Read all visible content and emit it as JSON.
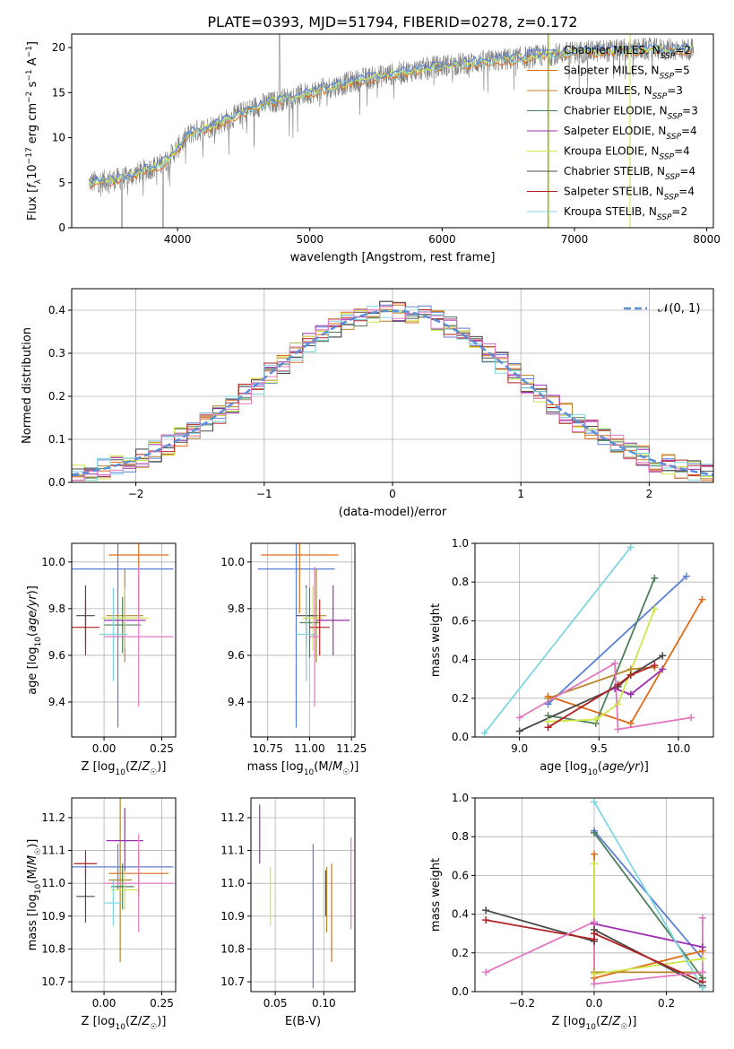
{
  "title": "PLATE=0393, MJD=51794, FIBERID=0278, z=0.172",
  "colors": {
    "Chabrier MILES": "#5b7fd6",
    "Salpeter MILES": "#e06c1a",
    "Kroupa MILES": "#b8862a",
    "Chabrier ELODIE": "#4f7f5a",
    "Salpeter ELODIE": "#9b2fae",
    "Kroupa ELODIE": "#cfe64a",
    "Chabrier STELIB": "#4a4a4a",
    "Salpeter STELIB": "#b22222",
    "Kroupa STELIB": "#7fd6e0",
    "pink": "#e377c2",
    "normal": "#5b8fd6",
    "data": "#808080"
  },
  "chart_data": [
    {
      "id": "spectrum",
      "type": "line",
      "xlabel": "wavelength [Angstrom, rest frame]",
      "ylabel": "Flux [f_λ10^-17 erg cm^-2 s^-1 A^-1]",
      "xlim": [
        3200,
        8050
      ],
      "ylim": [
        0,
        21.5
      ],
      "xticks": [
        4000,
        5000,
        6000,
        7000,
        8000
      ],
      "yticks": [
        0,
        5,
        10,
        15,
        20
      ],
      "legend_position": "top-right",
      "legend": [
        {
          "label": "Chabrier MILES, N_SSP=2",
          "color_key": "Chabrier MILES"
        },
        {
          "label": "Salpeter MILES, N_SSP=5",
          "color_key": "Salpeter MILES"
        },
        {
          "label": "Kroupa MILES, N_SSP=3",
          "color_key": "Kroupa MILES"
        },
        {
          "label": "Chabrier ELODIE, N_SSP=3",
          "color_key": "Chabrier ELODIE"
        },
        {
          "label": "Salpeter ELODIE, N_SSP=4",
          "color_key": "Salpeter ELODIE"
        },
        {
          "label": "Kroupa ELODIE, N_SSP=4",
          "color_key": "Kroupa ELODIE"
        },
        {
          "label": "Chabrier STELIB, N_SSP=4",
          "color_key": "Chabrier STELIB"
        },
        {
          "label": "Salpeter STELIB, N_SSP=4",
          "color_key": "Salpeter STELIB"
        },
        {
          "label": "Kroupa STELIB, N_SSP=2",
          "color_key": "Kroupa STELIB"
        }
      ],
      "continuum": [
        [
          3330,
          5.0
        ],
        [
          3600,
          5.5
        ],
        [
          3900,
          7.2
        ],
        [
          4100,
          10.5
        ],
        [
          4300,
          11.5
        ],
        [
          4600,
          13.5
        ],
        [
          5000,
          15.0
        ],
        [
          5400,
          16.5
        ],
        [
          6000,
          18.0
        ],
        [
          6500,
          18.7
        ],
        [
          7000,
          19.5
        ],
        [
          7500,
          19.8
        ],
        [
          7900,
          19.8
        ]
      ]
    },
    {
      "id": "residual-hist",
      "type": "line",
      "xlabel": "(data-model)/error",
      "ylabel": "Normed distribution",
      "xlim": [
        -2.5,
        2.5
      ],
      "ylim": [
        0,
        0.45
      ],
      "xticks": [
        -2,
        -1,
        0,
        1,
        2
      ],
      "yticks": [
        0.0,
        0.1,
        0.2,
        0.3,
        0.4
      ],
      "legend_position": "top-right",
      "legend": [
        {
          "label": "𝒩(0, 1)",
          "color_key": "normal"
        }
      ],
      "bin_width": 0.1,
      "n_bins": 50
    },
    {
      "id": "age-vs-Z",
      "type": "scatter",
      "xlabel": "Z [log10(Z/Z☉)]",
      "ylabel": "age  [log10(age/yr)]",
      "xlim": [
        -0.14,
        0.31
      ],
      "ylim": [
        9.25,
        10.08
      ],
      "xticks": [
        0.0,
        0.25
      ],
      "yticks": [
        9.4,
        9.6,
        9.8,
        10.0
      ],
      "points": [
        {
          "c": "Chabrier MILES",
          "x": 0.06,
          "y": 9.97,
          "xerr": 0.24,
          "yerr": 0.68
        },
        {
          "c": "Salpeter MILES",
          "x": 0.15,
          "y": 10.03,
          "xerr": 0.13,
          "yerr": 0.25
        },
        {
          "c": "Kroupa MILES",
          "x": 0.09,
          "y": 9.77,
          "xerr": 0.08,
          "yerr": 0.2
        },
        {
          "c": "Chabrier ELODIE",
          "x": 0.08,
          "y": 9.73,
          "xerr": 0.08,
          "yerr": 0.12
        },
        {
          "c": "Salpeter ELODIE",
          "x": 0.09,
          "y": 9.75,
          "xerr": 0.09,
          "yerr": 0.11
        },
        {
          "c": "Kroupa ELODIE",
          "x": 0.09,
          "y": 9.76,
          "xerr": 0.1,
          "yerr": 0.13
        },
        {
          "c": "Chabrier STELIB",
          "x": -0.08,
          "y": 9.77,
          "xerr": 0.04,
          "yerr": 0.13
        },
        {
          "c": "Salpeter STELIB",
          "x": -0.08,
          "y": 9.72,
          "xerr": 0.06,
          "yerr": 0.12
        },
        {
          "c": "Kroupa STELIB",
          "x": 0.04,
          "y": 9.69,
          "xerr": 0.06,
          "yerr": 0.2
        },
        {
          "c": "pink",
          "x": 0.15,
          "y": 9.68,
          "xerr": 0.15,
          "yerr": 0.3
        }
      ]
    },
    {
      "id": "age-vs-mass",
      "type": "scatter",
      "xlabel": "mass [log10(M/M☉)]",
      "ylabel": "",
      "xlim": [
        10.65,
        11.27
      ],
      "ylim": [
        9.25,
        10.08
      ],
      "xticks": [
        10.75,
        11.0,
        11.25
      ],
      "yticks": [
        9.4,
        9.6,
        9.8,
        10.0
      ],
      "points": [
        {
          "c": "Chabrier MILES",
          "x": 10.92,
          "y": 9.97,
          "xerr": 0.23,
          "yerr": 0.68
        },
        {
          "c": "Salpeter MILES",
          "x": 10.94,
          "y": 10.03,
          "xerr": 0.23,
          "yerr": 0.25
        },
        {
          "c": "Kroupa MILES",
          "x": 11.04,
          "y": 9.77,
          "xerr": 0.06,
          "yerr": 0.2
        },
        {
          "c": "Chabrier ELODIE",
          "x": 11.0,
          "y": 9.74,
          "xerr": 0.06,
          "yerr": 0.15
        },
        {
          "c": "Salpeter ELODIE",
          "x": 11.14,
          "y": 9.75,
          "xerr": 0.1,
          "yerr": 0.15
        },
        {
          "c": "Kroupa ELODIE",
          "x": 11.02,
          "y": 9.76,
          "xerr": 0.06,
          "yerr": 0.14
        },
        {
          "c": "Chabrier STELIB",
          "x": 10.98,
          "y": 9.77,
          "xerr": 0.06,
          "yerr": 0.13
        },
        {
          "c": "Salpeter STELIB",
          "x": 11.06,
          "y": 9.72,
          "xerr": 0.06,
          "yerr": 0.12
        },
        {
          "c": "Kroupa STELIB",
          "x": 10.98,
          "y": 9.69,
          "xerr": 0.06,
          "yerr": 0.2
        },
        {
          "c": "pink",
          "x": 11.03,
          "y": 9.68,
          "xerr": 0.03,
          "yerr": 0.3
        }
      ]
    },
    {
      "id": "weight-vs-age",
      "type": "line",
      "xlabel": "age  [log10(age/yr)]",
      "ylabel": "mass weight",
      "xlim": [
        8.72,
        10.22
      ],
      "ylim": [
        0,
        1
      ],
      "xticks": [
        9.0,
        9.5,
        10.0
      ],
      "yticks": [
        0.0,
        0.2,
        0.4,
        0.6,
        0.8,
        1.0
      ],
      "series": [
        {
          "c": "Chabrier MILES",
          "points": [
            [
              9.18,
              0.17
            ],
            [
              10.05,
              0.83
            ]
          ]
        },
        {
          "c": "Salpeter MILES",
          "points": [
            [
              9.18,
              0.21
            ],
            [
              9.7,
              0.07
            ],
            [
              10.15,
              0.71
            ]
          ]
        },
        {
          "c": "Kroupa MILES",
          "points": [
            [
              9.18,
              0.2
            ],
            [
              9.7,
              0.35
            ],
            [
              9.85,
              0.36
            ]
          ]
        },
        {
          "c": "Chabrier ELODIE",
          "points": [
            [
              9.18,
              0.11
            ],
            [
              9.48,
              0.07
            ],
            [
              9.85,
              0.82
            ]
          ]
        },
        {
          "c": "Salpeter ELODIE",
          "points": [
            [
              9.6,
              0.25
            ],
            [
              9.7,
              0.22
            ],
            [
              9.9,
              0.35
            ]
          ]
        },
        {
          "c": "Kroupa ELODIE",
          "points": [
            [
              9.18,
              0.08
            ],
            [
              9.48,
              0.09
            ],
            [
              9.62,
              0.17
            ],
            [
              9.85,
              0.66
            ]
          ]
        },
        {
          "c": "Chabrier STELIB",
          "points": [
            [
              9.0,
              0.03
            ],
            [
              9.62,
              0.26
            ],
            [
              9.7,
              0.32
            ],
            [
              9.9,
              0.42
            ]
          ]
        },
        {
          "c": "Salpeter STELIB",
          "points": [
            [
              9.18,
              0.05
            ],
            [
              9.62,
              0.27
            ],
            [
              9.7,
              0.32
            ],
            [
              9.85,
              0.37
            ]
          ]
        },
        {
          "c": "Kroupa STELIB",
          "points": [
            [
              8.78,
              0.02
            ],
            [
              9.7,
              0.98
            ]
          ]
        },
        {
          "c": "pink",
          "points": [
            [
              9.0,
              0.1
            ],
            [
              9.6,
              0.38
            ],
            [
              9.62,
              0.04
            ],
            [
              10.08,
              0.1
            ]
          ]
        }
      ]
    },
    {
      "id": "mass-vs-Z",
      "type": "scatter",
      "xlabel": "Z [log10(Z/Z☉)]",
      "ylabel": "mass [log10(M/M☉)]",
      "xlim": [
        -0.14,
        0.31
      ],
      "ylim": [
        10.67,
        11.26
      ],
      "xticks": [
        0.0,
        0.25
      ],
      "yticks": [
        10.7,
        10.8,
        10.9,
        11.0,
        11.1,
        11.2
      ],
      "points": [
        {
          "c": "Chabrier MILES",
          "x": 0.06,
          "y": 11.05,
          "xerr": 0.24,
          "yerr": 0.07
        },
        {
          "c": "Salpeter MILES",
          "x": 0.15,
          "y": 11.03,
          "xerr": 0.13,
          "yerr": 0.07
        },
        {
          "c": "Kroupa MILES",
          "x": 0.07,
          "y": 11.01,
          "xerr": 0.05,
          "yerr": 0.25
        },
        {
          "c": "Chabrier ELODIE",
          "x": 0.08,
          "y": 10.99,
          "xerr": 0.05,
          "yerr": 0.07
        },
        {
          "c": "Salpeter ELODIE",
          "x": 0.09,
          "y": 11.13,
          "xerr": 0.08,
          "yerr": 0.1
        },
        {
          "c": "Kroupa ELODIE",
          "x": 0.09,
          "y": 10.98,
          "xerr": 0.06,
          "yerr": 0.06
        },
        {
          "c": "Chabrier STELIB",
          "x": -0.08,
          "y": 10.96,
          "xerr": 0.04,
          "yerr": 0.08
        },
        {
          "c": "Salpeter STELIB",
          "x": -0.08,
          "y": 11.06,
          "xerr": 0.05,
          "yerr": 0.04
        },
        {
          "c": "Kroupa STELIB",
          "x": 0.04,
          "y": 10.94,
          "xerr": 0.04,
          "yerr": 0.07
        },
        {
          "c": "pink",
          "x": 0.15,
          "y": 11.0,
          "xerr": 0.15,
          "yerr": 0.15
        }
      ]
    },
    {
      "id": "mass-vs-EBV",
      "type": "scatter",
      "xlabel": "E(B-V)",
      "ylabel": "",
      "xlim": [
        0.025,
        0.132
      ],
      "ylim": [
        10.67,
        11.26
      ],
      "xticks": [
        0.05,
        0.1
      ],
      "yticks": [
        10.7,
        10.8,
        10.9,
        11.0,
        11.1,
        11.2
      ],
      "points": [
        {
          "c": "Chabrier MILES",
          "x": 0.089,
          "y": 10.9,
          "yerr": 0.22
        },
        {
          "c": "Salpeter MILES",
          "x": 0.108,
          "y": 10.91,
          "yerr": 0.15
        },
        {
          "c": "Chabrier STELIB",
          "x": 0.102,
          "y": 10.97,
          "yerr": 0.07
        },
        {
          "c": "Kroupa ELODIE",
          "x": 0.045,
          "y": 10.96,
          "yerr": 0.09
        },
        {
          "c": "Salpeter ELODIE",
          "x": 0.034,
          "y": 11.15,
          "yerr": 0.09
        },
        {
          "c": "Kroupa MILES",
          "x": 0.103,
          "y": 10.95,
          "yerr": 0.1
        },
        {
          "c": "pink",
          "x": 0.128,
          "y": 11.0,
          "yerr": 0.14
        }
      ]
    },
    {
      "id": "weight-vs-Z",
      "type": "line",
      "xlabel": "Z [log10(Z/Z☉)]",
      "ylabel": "mass weight",
      "xlim": [
        -0.33,
        0.33
      ],
      "ylim": [
        0,
        1
      ],
      "xticks": [
        -0.2,
        0.0,
        0.2
      ],
      "yticks": [
        0.0,
        0.2,
        0.4,
        0.6,
        0.8,
        1.0
      ],
      "series": [
        {
          "c": "Chabrier MILES",
          "points": [
            [
              0.0,
              0.83
            ],
            [
              0.3,
              0.17
            ]
          ]
        },
        {
          "c": "Salpeter MILES",
          "points": [
            [
              0.0,
              0.71
            ],
            [
              0.0,
              0.07
            ],
            [
              0.3,
              0.21
            ]
          ]
        },
        {
          "c": "Kroupa MILES",
          "points": [
            [
              0.0,
              0.1
            ],
            [
              0.3,
              0.1
            ]
          ]
        },
        {
          "c": "Chabrier ELODIE",
          "points": [
            [
              0.0,
              0.82
            ],
            [
              0.3,
              0.07
            ]
          ]
        },
        {
          "c": "Salpeter ELODIE",
          "points": [
            [
              0.0,
              0.35
            ],
            [
              0.3,
              0.23
            ]
          ]
        },
        {
          "c": "Kroupa ELODIE",
          "points": [
            [
              0.0,
              0.66
            ],
            [
              0.0,
              0.09
            ],
            [
              0.3,
              0.17
            ]
          ]
        },
        {
          "c": "Chabrier STELIB",
          "points": [
            [
              -0.3,
              0.42
            ],
            [
              0.0,
              0.26
            ],
            [
              0.0,
              0.32
            ],
            [
              0.3,
              0.03
            ]
          ]
        },
        {
          "c": "Salpeter STELIB",
          "points": [
            [
              -0.3,
              0.37
            ],
            [
              0.0,
              0.27
            ],
            [
              0.0,
              0.3
            ],
            [
              0.3,
              0.05
            ]
          ]
        },
        {
          "c": "Kroupa STELIB",
          "points": [
            [
              0.0,
              0.98
            ],
            [
              0.3,
              0.02
            ]
          ]
        },
        {
          "c": "pink",
          "points": [
            [
              -0.3,
              0.1
            ],
            [
              0.0,
              0.36
            ],
            [
              0.0,
              0.04
            ],
            [
              0.3,
              0.1
            ],
            [
              0.3,
              0.38
            ]
          ]
        }
      ]
    }
  ]
}
